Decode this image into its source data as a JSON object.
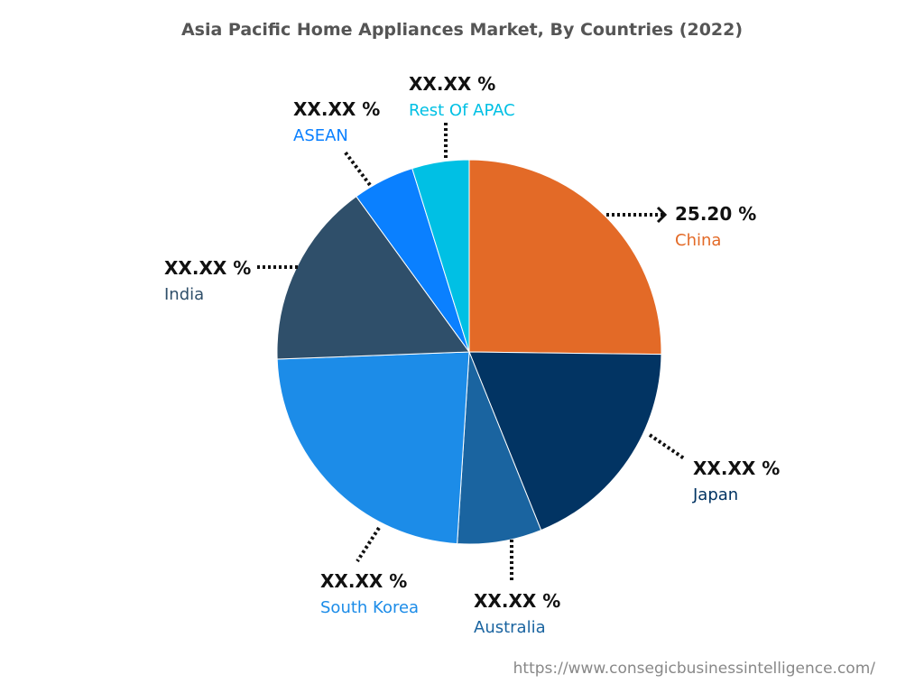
{
  "chart_data": {
    "type": "pie",
    "title": "Asia Pacific Home Appliances Market, By Countries (2022)",
    "start": "top",
    "direction": "clockwise",
    "slices": [
      {
        "name": "China",
        "value": 25.2,
        "label": "25.20 %",
        "color": "#E36A27"
      },
      {
        "name": "Japan",
        "value": 18.7,
        "label": "XX.XX %",
        "color": "#023463"
      },
      {
        "name": "Australia",
        "value": 7.1,
        "label": "XX.XX %",
        "color": "#1A64A0"
      },
      {
        "name": "South Korea",
        "value": 23.4,
        "label": "XX.XX %",
        "color": "#1C8CE8"
      },
      {
        "name": "India",
        "value": 15.6,
        "label": "XX.XX %",
        "color": "#2F4F6A"
      },
      {
        "name": "ASEAN",
        "value": 5.2,
        "label": "XX.XX %",
        "color": "#0A80FF"
      },
      {
        "name": "Rest Of APAC",
        "value": 4.8,
        "label": "XX.XX %",
        "color": "#00C0E4"
      }
    ]
  },
  "source": "https://www.consegicbusinessintelligence.com/"
}
